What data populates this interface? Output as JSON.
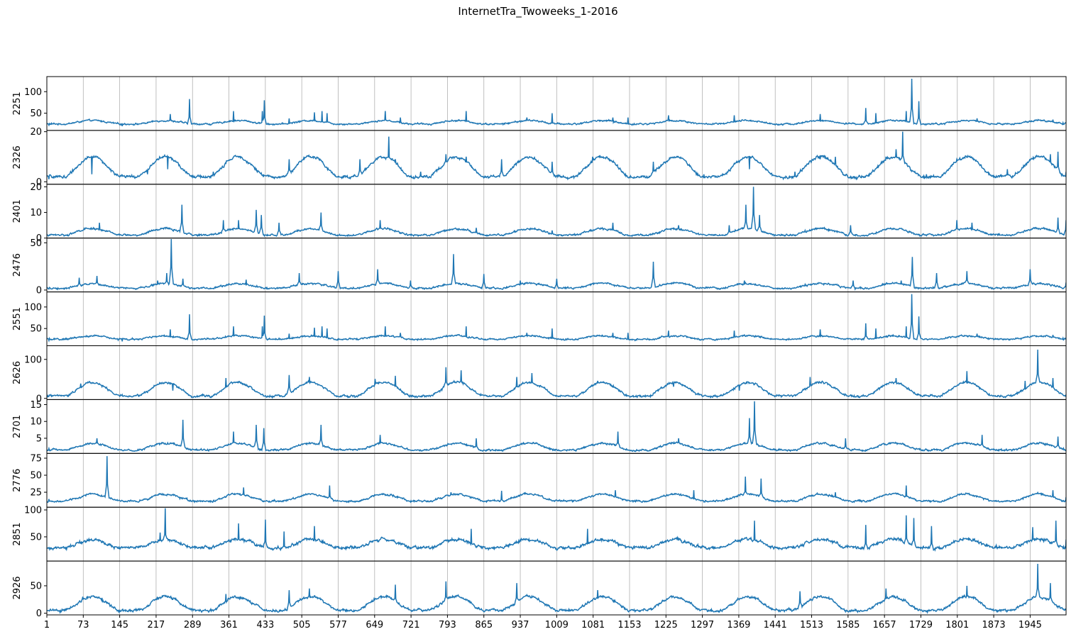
{
  "chart_data": {
    "type": "line",
    "title": "InternetTra_Twoweeks_1-2016",
    "line_color": "#1f77b4",
    "grid": "vertical",
    "x_range": [
      1,
      2016
    ],
    "x_ticks": [
      1,
      73,
      145,
      217,
      289,
      361,
      433,
      505,
      577,
      649,
      721,
      793,
      865,
      937,
      1009,
      1081,
      1153,
      1225,
      1297,
      1369,
      1441,
      1513,
      1585,
      1657,
      1729,
      1801,
      1873,
      1945
    ],
    "panels": [
      {
        "ylabel": "2251",
        "ylim": [
          10,
          135
        ],
        "yticks": [
          50,
          100
        ],
        "base": 25,
        "day_amp": 8,
        "noise": 4,
        "points": [
          [
            5,
            22
          ],
          [
            70,
            30
          ],
          [
            150,
            20
          ],
          [
            245,
            48
          ],
          [
            283,
            83
          ],
          [
            370,
            55
          ],
          [
            427,
            55
          ],
          [
            431,
            80
          ],
          [
            480,
            38
          ],
          [
            530,
            52
          ],
          [
            545,
            55
          ],
          [
            555,
            50
          ],
          [
            670,
            55
          ],
          [
            700,
            40
          ],
          [
            830,
            55
          ],
          [
            950,
            40
          ],
          [
            1000,
            50
          ],
          [
            1120,
            40
          ],
          [
            1150,
            40
          ],
          [
            1230,
            45
          ],
          [
            1360,
            45
          ],
          [
            1530,
            48
          ],
          [
            1620,
            62
          ],
          [
            1640,
            50
          ],
          [
            1700,
            55
          ],
          [
            1711,
            130
          ],
          [
            1725,
            78
          ],
          [
            1840,
            38
          ],
          [
            1990,
            35
          ],
          [
            2010,
            28
          ]
        ]
      },
      {
        "ylabel": "2326",
        "ylim": [
          -1,
          20.5
        ],
        "yticks": [
          0,
          20
        ],
        "base": 2,
        "day_amp": 8,
        "noise": 1.2,
        "points": [
          [
            5,
            1
          ],
          [
            90,
            3
          ],
          [
            140,
            3
          ],
          [
            200,
            3
          ],
          [
            240,
            5
          ],
          [
            330,
            4
          ],
          [
            480,
            9
          ],
          [
            530,
            10
          ],
          [
            620,
            9
          ],
          [
            677,
            18
          ],
          [
            690,
            9
          ],
          [
            740,
            4
          ],
          [
            790,
            11
          ],
          [
            830,
            10
          ],
          [
            900,
            9
          ],
          [
            1000,
            8
          ],
          [
            1080,
            10
          ],
          [
            1200,
            8
          ],
          [
            1300,
            3
          ],
          [
            1390,
            5
          ],
          [
            1480,
            4
          ],
          [
            1530,
            9
          ],
          [
            1560,
            10
          ],
          [
            1660,
            10
          ],
          [
            1680,
            13
          ],
          [
            1693,
            20
          ],
          [
            1740,
            3
          ],
          [
            1800,
            9
          ],
          [
            1900,
            5
          ],
          [
            1960,
            10
          ],
          [
            1985,
            11
          ],
          [
            2000,
            12
          ],
          [
            2016,
            4
          ]
        ]
      },
      {
        "ylabel": "2401",
        "ylim": [
          0,
          21
        ],
        "yticks": [
          0,
          10,
          20
        ],
        "base": 1.2,
        "day_amp": 2.5,
        "noise": 0.8,
        "points": [
          [
            5,
            1
          ],
          [
            65,
            3
          ],
          [
            105,
            6
          ],
          [
            268,
            13
          ],
          [
            350,
            7
          ],
          [
            380,
            7
          ],
          [
            415,
            11
          ],
          [
            425,
            9
          ],
          [
            460,
            6
          ],
          [
            543,
            10
          ],
          [
            660,
            7
          ],
          [
            850,
            4
          ],
          [
            1000,
            3
          ],
          [
            1120,
            6
          ],
          [
            1250,
            5
          ],
          [
            1350,
            5
          ],
          [
            1383,
            13
          ],
          [
            1398,
            20
          ],
          [
            1410,
            9
          ],
          [
            1500,
            3
          ],
          [
            1590,
            5
          ],
          [
            1700,
            3
          ],
          [
            1800,
            7
          ],
          [
            1830,
            6
          ],
          [
            2000,
            8
          ],
          [
            2016,
            7
          ]
        ]
      },
      {
        "ylabel": "2476",
        "ylim": [
          -2,
          55
        ],
        "yticks": [
          0,
          50
        ],
        "base": 2,
        "day_amp": 5,
        "noise": 2,
        "points": [
          [
            5,
            1
          ],
          [
            65,
            13
          ],
          [
            100,
            15
          ],
          [
            220,
            10
          ],
          [
            238,
            18
          ],
          [
            247,
            54
          ],
          [
            270,
            12
          ],
          [
            395,
            11
          ],
          [
            500,
            18
          ],
          [
            577,
            20
          ],
          [
            655,
            22
          ],
          [
            720,
            10
          ],
          [
            805,
            38
          ],
          [
            865,
            17
          ],
          [
            937,
            10
          ],
          [
            1009,
            12
          ],
          [
            1200,
            30
          ],
          [
            1240,
            8
          ],
          [
            1380,
            10
          ],
          [
            1500,
            6
          ],
          [
            1595,
            10
          ],
          [
            1690,
            10
          ],
          [
            1712,
            35
          ],
          [
            1760,
            18
          ],
          [
            1820,
            20
          ],
          [
            1945,
            22
          ],
          [
            2016,
            8
          ]
        ]
      },
      {
        "ylabel": "2551",
        "ylim": [
          10,
          135
        ],
        "yticks": [
          50,
          100
        ],
        "base": 25,
        "day_amp": 8,
        "noise": 4,
        "points": [
          [
            5,
            22
          ],
          [
            70,
            30
          ],
          [
            150,
            20
          ],
          [
            245,
            48
          ],
          [
            283,
            83
          ],
          [
            370,
            55
          ],
          [
            427,
            55
          ],
          [
            431,
            80
          ],
          [
            480,
            38
          ],
          [
            530,
            52
          ],
          [
            545,
            55
          ],
          [
            555,
            50
          ],
          [
            670,
            55
          ],
          [
            700,
            40
          ],
          [
            830,
            55
          ],
          [
            950,
            40
          ],
          [
            1000,
            50
          ],
          [
            1120,
            40
          ],
          [
            1150,
            40
          ],
          [
            1230,
            45
          ],
          [
            1360,
            45
          ],
          [
            1530,
            48
          ],
          [
            1620,
            62
          ],
          [
            1640,
            50
          ],
          [
            1700,
            55
          ],
          [
            1711,
            130
          ],
          [
            1725,
            78
          ],
          [
            1840,
            38
          ],
          [
            1990,
            35
          ],
          [
            2010,
            28
          ]
        ]
      },
      {
        "ylabel": "2626",
        "ylim": [
          -3,
          135
        ],
        "yticks": [
          0,
          100
        ],
        "base": 6,
        "day_amp": 35,
        "noise": 6,
        "points": [
          [
            5,
            5
          ],
          [
            68,
            38
          ],
          [
            110,
            30
          ],
          [
            200,
            15
          ],
          [
            250,
            20
          ],
          [
            355,
            52
          ],
          [
            480,
            60
          ],
          [
            520,
            55
          ],
          [
            650,
            50
          ],
          [
            690,
            58
          ],
          [
            790,
            80
          ],
          [
            820,
            72
          ],
          [
            930,
            55
          ],
          [
            960,
            65
          ],
          [
            1090,
            45
          ],
          [
            1240,
            30
          ],
          [
            1370,
            20
          ],
          [
            1510,
            55
          ],
          [
            1680,
            52
          ],
          [
            1820,
            70
          ],
          [
            1935,
            45
          ],
          [
            1960,
            125
          ],
          [
            1990,
            52
          ],
          [
            2016,
            10
          ]
        ]
      },
      {
        "ylabel": "2701",
        "ylim": [
          0.5,
          16.5
        ],
        "yticks": [
          5,
          10,
          15
        ],
        "base": 1.5,
        "day_amp": 2,
        "noise": 0.6,
        "points": [
          [
            5,
            2
          ],
          [
            100,
            5
          ],
          [
            270,
            10.5
          ],
          [
            370,
            7
          ],
          [
            415,
            9
          ],
          [
            430,
            8
          ],
          [
            543,
            9
          ],
          [
            660,
            6
          ],
          [
            850,
            5
          ],
          [
            1130,
            7
          ],
          [
            1250,
            5
          ],
          [
            1390,
            11
          ],
          [
            1400,
            16
          ],
          [
            1580,
            5
          ],
          [
            1850,
            6
          ],
          [
            2000,
            5.5
          ]
        ]
      },
      {
        "ylabel": "2776",
        "ylim": [
          3,
          82
        ],
        "yticks": [
          25,
          50,
          75
        ],
        "base": 12,
        "day_amp": 10,
        "noise": 3,
        "points": [
          [
            5,
            15
          ],
          [
            120,
            78
          ],
          [
            140,
            14
          ],
          [
            390,
            32
          ],
          [
            560,
            35
          ],
          [
            800,
            25
          ],
          [
            900,
            27
          ],
          [
            1125,
            28
          ],
          [
            1280,
            28
          ],
          [
            1382,
            48
          ],
          [
            1413,
            45
          ],
          [
            1560,
            25
          ],
          [
            1700,
            35
          ],
          [
            1990,
            28
          ],
          [
            2016,
            18
          ]
        ]
      },
      {
        "ylabel": "2851",
        "ylim": [
          5,
          105
        ],
        "yticks": [
          50,
          100
        ],
        "base": 30,
        "day_amp": 15,
        "noise": 6,
        "points": [
          [
            5,
            30
          ],
          [
            225,
            58
          ],
          [
            235,
            103
          ],
          [
            380,
            75
          ],
          [
            433,
            82
          ],
          [
            470,
            60
          ],
          [
            530,
            70
          ],
          [
            840,
            65
          ],
          [
            1070,
            65
          ],
          [
            1400,
            80
          ],
          [
            1620,
            72
          ],
          [
            1700,
            90
          ],
          [
            1715,
            85
          ],
          [
            1750,
            70
          ],
          [
            1950,
            68
          ],
          [
            1996,
            80
          ],
          [
            2016,
            45
          ]
        ]
      },
      {
        "ylabel": "2926",
        "ylim": [
          -3,
          95
        ],
        "yticks": [
          0,
          50
        ],
        "base": 5,
        "day_amp": 25,
        "noise": 5,
        "points": [
          [
            5,
            5
          ],
          [
            72,
            30
          ],
          [
            110,
            28
          ],
          [
            355,
            35
          ],
          [
            480,
            42
          ],
          [
            520,
            45
          ],
          [
            690,
            52
          ],
          [
            790,
            58
          ],
          [
            930,
            55
          ],
          [
            1090,
            42
          ],
          [
            1490,
            40
          ],
          [
            1660,
            45
          ],
          [
            1820,
            50
          ],
          [
            1960,
            90
          ],
          [
            1985,
            55
          ],
          [
            2016,
            8
          ]
        ]
      }
    ]
  }
}
